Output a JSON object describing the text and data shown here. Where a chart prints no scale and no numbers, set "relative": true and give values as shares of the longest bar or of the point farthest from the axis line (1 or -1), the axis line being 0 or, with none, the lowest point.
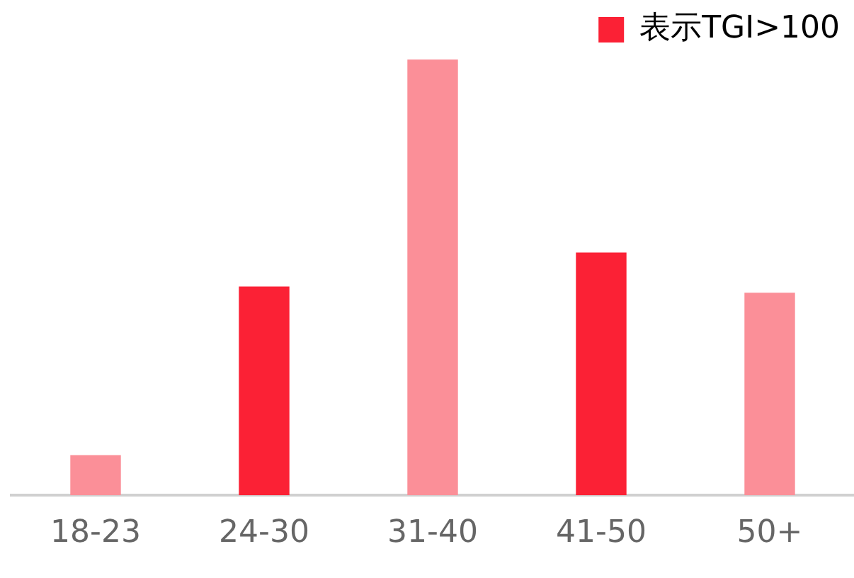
{
  "chart_data": {
    "type": "bar",
    "relative": true,
    "categories": [
      "18-23",
      "24-30",
      "31-40",
      "41-50",
      "50+"
    ],
    "series": [
      {
        "name": "表示TGI>100",
        "color": "#fb2135",
        "values": [
          null,
          0.479,
          null,
          0.557,
          null
        ]
      },
      {
        "color": "#fb8f98",
        "values": [
          0.092,
          null,
          1,
          null,
          0.465
        ]
      }
    ],
    "legend": "top right",
    "grid": false
  }
}
